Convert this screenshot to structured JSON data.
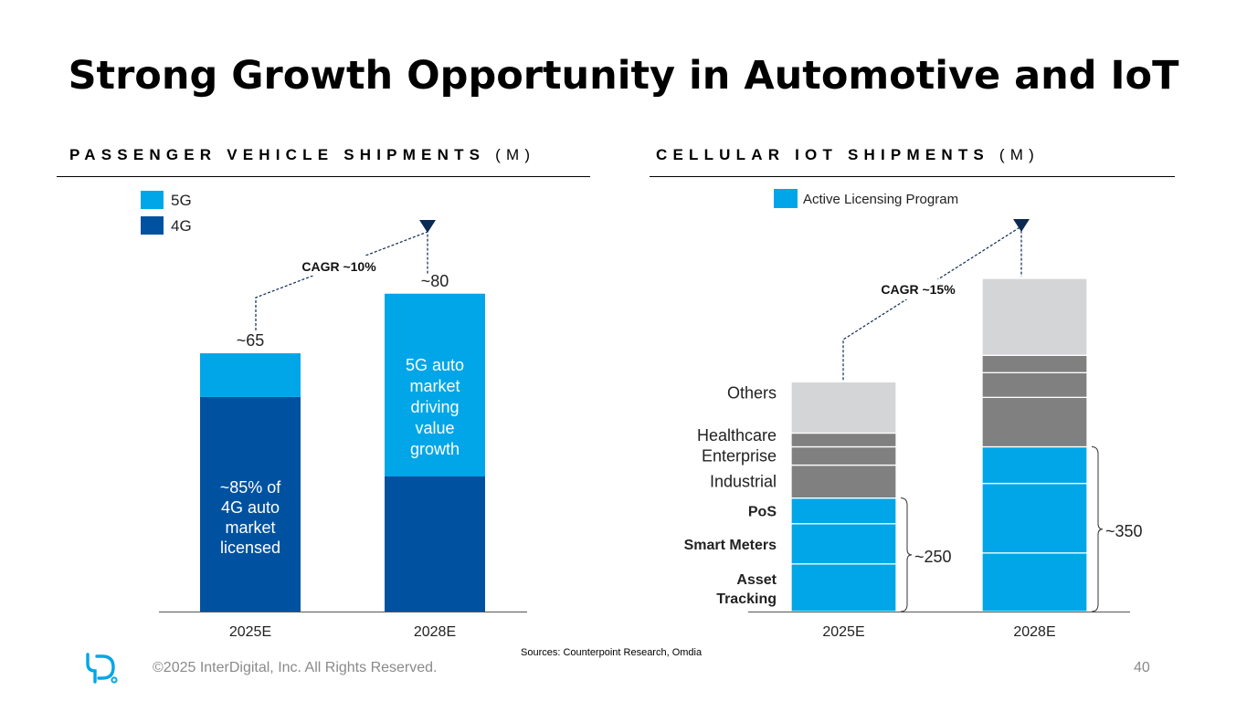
{
  "slide": {
    "title": "Strong Growth Opportunity in Automotive and IoT",
    "footer_copyright": "©2025 InterDigital, Inc. All Rights Reserved.",
    "sources": "Sources: Counterpoint Research, Omdia",
    "page_number": "40"
  },
  "colors": {
    "dark_blue": "#0052A0",
    "light_blue": "#00A6E8",
    "grey_dark": "#808080",
    "grey_light": "#D4D5D7",
    "navy": "#0B2A52"
  },
  "chart_data": [
    {
      "type": "bar",
      "heading_bold": "PASSENGER VEHICLE SHIPMENTS",
      "heading_unit": "(M)",
      "categories": [
        "2025E",
        "2028E"
      ],
      "series": [
        {
          "name": "4G",
          "values": [
            54,
            34
          ]
        },
        {
          "name": "5G",
          "values": [
            11,
            46
          ]
        }
      ],
      "totals": [
        "~65",
        "~80"
      ],
      "annotations": {
        "cagr": "CAGR ~10%",
        "bar1_note": "~85% of\n4G auto\nmarket\nlicensed",
        "bar2_note": "5G auto\nmarket\ndriving\nvalue\ngrowth"
      },
      "ylim": [
        0,
        85
      ],
      "legend": "top-left"
    },
    {
      "type": "bar",
      "heading_bold": "CELLULAR IOT SHIPMENTS",
      "heading_unit": "(M)",
      "categories": [
        "2025E",
        "2028E"
      ],
      "series": [
        {
          "name": "Asset Tracking",
          "values": [
            52,
            64
          ]
        },
        {
          "name": "Smart Meters",
          "values": [
            44,
            76
          ]
        },
        {
          "name": "PoS",
          "values": [
            28,
            40
          ]
        },
        {
          "name": "Industrial",
          "values": [
            36,
            54
          ]
        },
        {
          "name": "Enterprise",
          "values": [
            20,
            27
          ]
        },
        {
          "name": "Healthcare",
          "values": [
            15,
            19
          ]
        },
        {
          "name": "Others",
          "values": [
            56,
            84
          ]
        }
      ],
      "licensed_series": [
        "Asset Tracking",
        "Smart Meters",
        "PoS"
      ],
      "bracket_labels": [
        "~250",
        "~350"
      ],
      "legend_label": "Active Licensing Program",
      "annotations": {
        "cagr": "CAGR ~15%"
      },
      "ylim": [
        0,
        365
      ],
      "legend": "top"
    }
  ]
}
